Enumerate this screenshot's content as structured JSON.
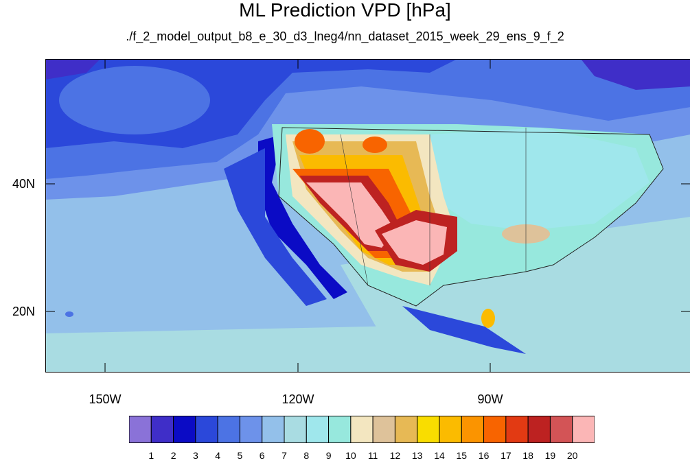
{
  "map": {
    "title": "ML Prediction VPD [hPa]",
    "subtitle": "./f_2_model_output_b8_e_30_d3_lneg4/nn_dataset_2015_week_29_ens_9_f_2",
    "lat_labels": [
      "40N",
      "20N"
    ],
    "lon_labels": [
      "150W",
      "120W",
      "90W"
    ]
  },
  "colorbar": {
    "labels": [
      "1",
      "2",
      "3",
      "4",
      "5",
      "6",
      "7",
      "8",
      "9",
      "10",
      "11",
      "12",
      "13",
      "14",
      "15",
      "16",
      "17",
      "18",
      "19",
      "20"
    ],
    "colors": [
      "#8a72d8",
      "#3f2ec8",
      "#0b0bc5",
      "#2b48da",
      "#4c73e4",
      "#6d92ea",
      "#93c0ea",
      "#a9dce2",
      "#9fe7ec",
      "#97e8dd",
      "#f3e6c0",
      "#dec29a",
      "#e7b955",
      "#f9dd00",
      "#fbbb00",
      "#fb9400",
      "#f86400",
      "#e23a13",
      "#bd2221",
      "#d35456",
      "#fbb6b6"
    ]
  }
}
